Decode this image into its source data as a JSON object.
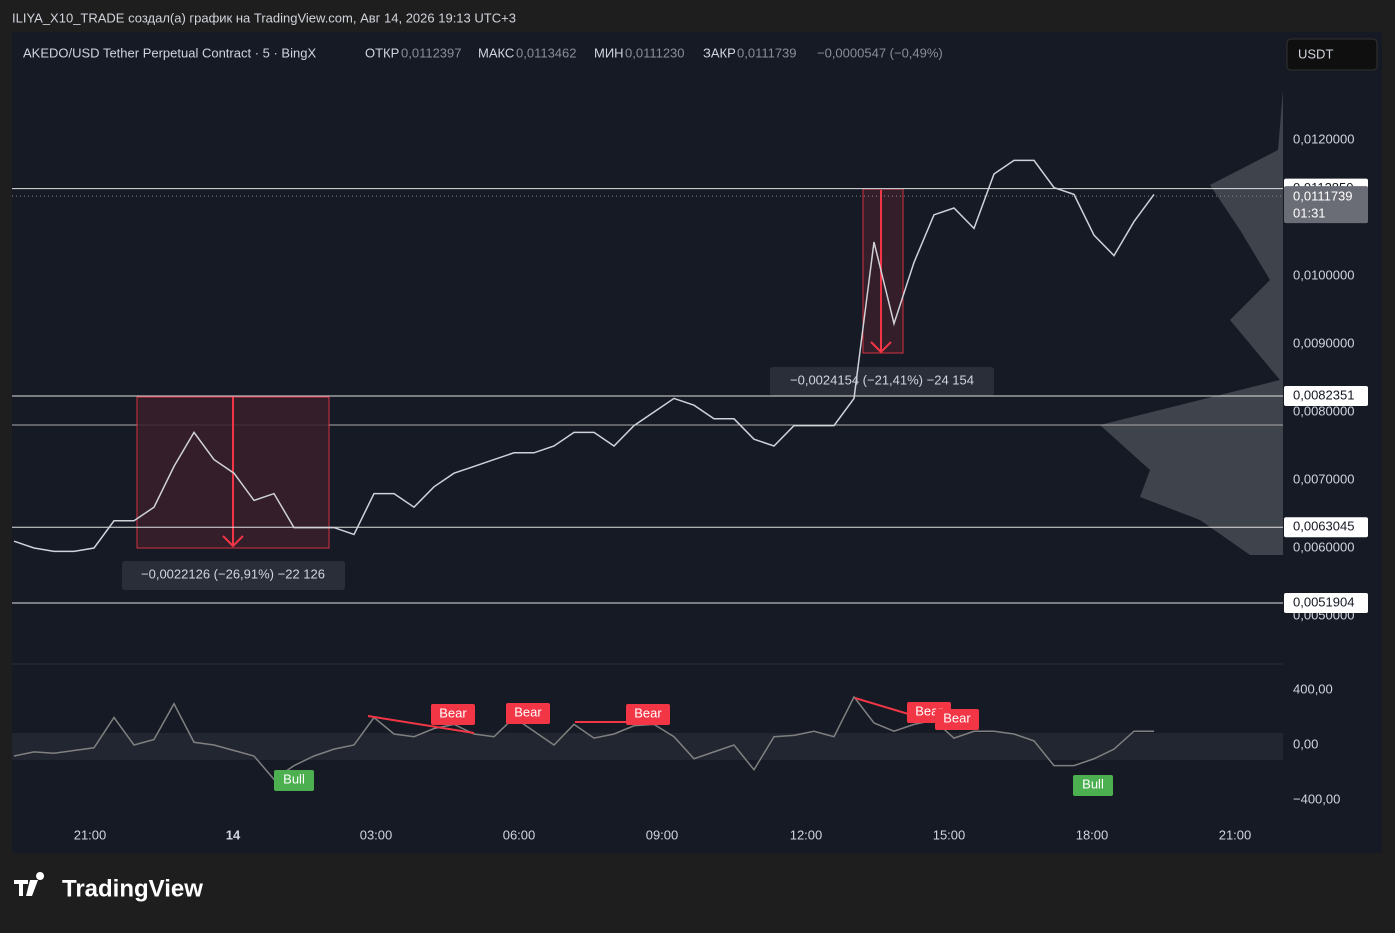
{
  "header": {
    "title": "ILIYA_X10_TRADE создал(а) график на TradingView.com, Авг 14, 2026 19:13 UTC+3"
  },
  "legend": {
    "symbol": "AKEDO/USD Tether Perpetual Contract · 5 · BingX",
    "open_label": "ОТКР",
    "open": "0,0112397",
    "high_label": "МАКС",
    "high": "0,0113462",
    "low_label": "МИН",
    "low": "0,0111230",
    "close_label": "ЗАКР",
    "close": "0,0111739",
    "change": "−0,0000547 (−0,49%)"
  },
  "currency_button": "USDT",
  "chart": {
    "price_ticks": [
      {
        "value": 0.012,
        "label": "0,0120000"
      },
      {
        "value": 0.01,
        "label": "0,0100000"
      },
      {
        "value": 0.009,
        "label": "0,0090000"
      },
      {
        "value": 0.008,
        "label": "0,0080000"
      },
      {
        "value": 0.007,
        "label": "0,0070000"
      },
      {
        "value": 0.006,
        "label": "0,0060000"
      },
      {
        "value": 0.005,
        "label": "0,0050000"
      }
    ],
    "levels": [
      {
        "value": 0.011285,
        "label": "0,0112850"
      },
      {
        "value": 0.0082351,
        "label": "0,0082351"
      },
      {
        "value": 0.0063045,
        "label": "0,0063045"
      },
      {
        "value": 0.0051904,
        "label": "0,0051904"
      }
    ],
    "current_price": {
      "value": 0.0111739,
      "label": "0,0111739",
      "countdown": "01:31"
    },
    "price": {
      "closes": [
        0.0061,
        0.006,
        0.00595,
        0.00595,
        0.006,
        0.0064,
        0.0064,
        0.0066,
        0.0072,
        0.0077,
        0.0073,
        0.0071,
        0.0067,
        0.0068,
        0.0063,
        0.0063,
        0.0063,
        0.0062,
        0.0068,
        0.0068,
        0.0066,
        0.0069,
        0.0071,
        0.0072,
        0.0073,
        0.0074,
        0.0074,
        0.0075,
        0.0077,
        0.0077,
        0.0075,
        0.0078,
        0.008,
        0.0082,
        0.0081,
        0.0079,
        0.0079,
        0.0076,
        0.0075,
        0.0078,
        0.0078,
        0.0078,
        0.0082,
        0.0105,
        0.0093,
        0.0102,
        0.0109,
        0.011,
        0.0107,
        0.0115,
        0.0117,
        0.0117,
        0.0113,
        0.0112,
        0.0106,
        0.0103,
        0.0108,
        0.0112
      ]
    },
    "measures": [
      {
        "label": "−0,0022126 (−26,91%) −22 126"
      },
      {
        "label": "−0,0024154 (−21,41%) −24 154"
      }
    ],
    "time_labels": [
      "21:00",
      "14",
      "03:00",
      "06:00",
      "09:00",
      "12:00",
      "15:00",
      "18:00",
      "21:00"
    ],
    "oscillator": {
      "ticks": [
        {
          "value": 400,
          "label": "400,00"
        },
        {
          "value": 0,
          "label": "0,00"
        },
        {
          "value": -400,
          "label": "−400,00"
        }
      ],
      "values": [
        -80,
        -50,
        -60,
        -40,
        -20,
        200,
        0,
        40,
        300,
        20,
        0,
        -40,
        -80,
        -250,
        -150,
        -80,
        -30,
        0,
        200,
        80,
        60,
        120,
        150,
        80,
        60,
        200,
        100,
        0,
        150,
        50,
        80,
        140,
        150,
        60,
        -100,
        -50,
        0,
        -180,
        60,
        70,
        100,
        60,
        350,
        160,
        100,
        150,
        180,
        50,
        100,
        100,
        80,
        30,
        -150,
        -150,
        -100,
        -30,
        100,
        100
      ],
      "signals": [
        "Bear",
        "Bear",
        "Bear",
        "Bear",
        "Bear",
        "Bull",
        "Bull"
      ]
    }
  },
  "footer": {
    "logo": "TradingView"
  }
}
